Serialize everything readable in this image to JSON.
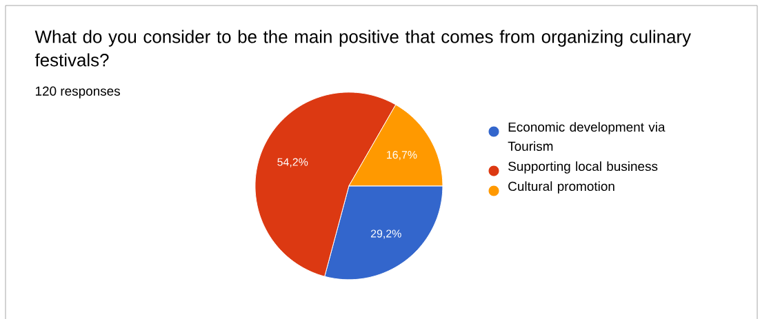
{
  "chart_data": {
    "type": "pie",
    "title": "What do you consider to be the main positive that comes from organizing culinary festivals?",
    "subtitle": "120 responses",
    "categories": [
      "Economic development via Tourism",
      "Supporting local business",
      "Cultural promotion"
    ],
    "values": [
      29.2,
      54.2,
      16.7
    ],
    "colors": [
      "#3366cc",
      "#dc3912",
      "#ff9900"
    ],
    "value_labels": [
      "29,2%",
      "54,2%",
      "16,7%"
    ],
    "legend": "right"
  }
}
